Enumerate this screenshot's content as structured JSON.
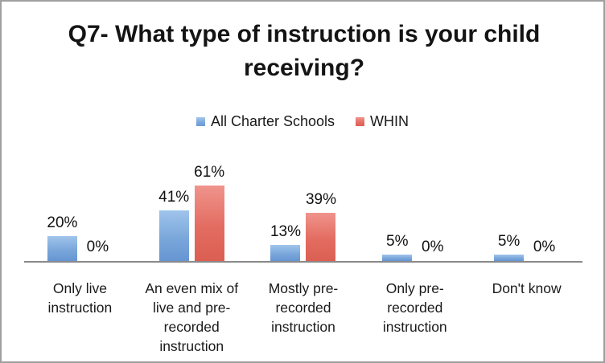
{
  "title": "Q7- What type of instruction is your child receiving?",
  "legend": [
    {
      "label": "All Charter Schools",
      "color": "#6f9fd8"
    },
    {
      "label": "WHIN",
      "color": "#e1675c"
    }
  ],
  "chart_data": {
    "type": "bar",
    "title": "Q7- What type of instruction is your child receiving?",
    "categories": [
      "Only live instruction",
      "An even mix of live and pre-recorded instruction",
      "Mostly pre-recorded instruction",
      "Only pre-recorded instruction",
      "Don't know"
    ],
    "categories_display": [
      "Only live\ninstruction",
      "An even mix of\nlive and pre-\nrecorded\ninstruction",
      "Mostly pre-\nrecorded\ninstruction",
      "Only pre-\nrecorded\ninstruction",
      "Don't know"
    ],
    "series": [
      {
        "name": "All Charter Schools",
        "color": "#6f9fd8",
        "values": [
          20,
          41,
          13,
          5,
          5
        ]
      },
      {
        "name": "WHIN",
        "color": "#e1675c",
        "values": [
          0,
          61,
          39,
          0,
          0
        ]
      }
    ],
    "value_labels": [
      [
        "20%",
        "0%"
      ],
      [
        "41%",
        "61%"
      ],
      [
        "13%",
        "39%"
      ],
      [
        "5%",
        "0%"
      ],
      [
        "5%",
        "0%"
      ]
    ],
    "xlabel": "",
    "ylabel": "",
    "ylim": [
      0,
      70
    ],
    "grid": false,
    "legend_position": "top",
    "axis_color": "#8a8a8a"
  }
}
